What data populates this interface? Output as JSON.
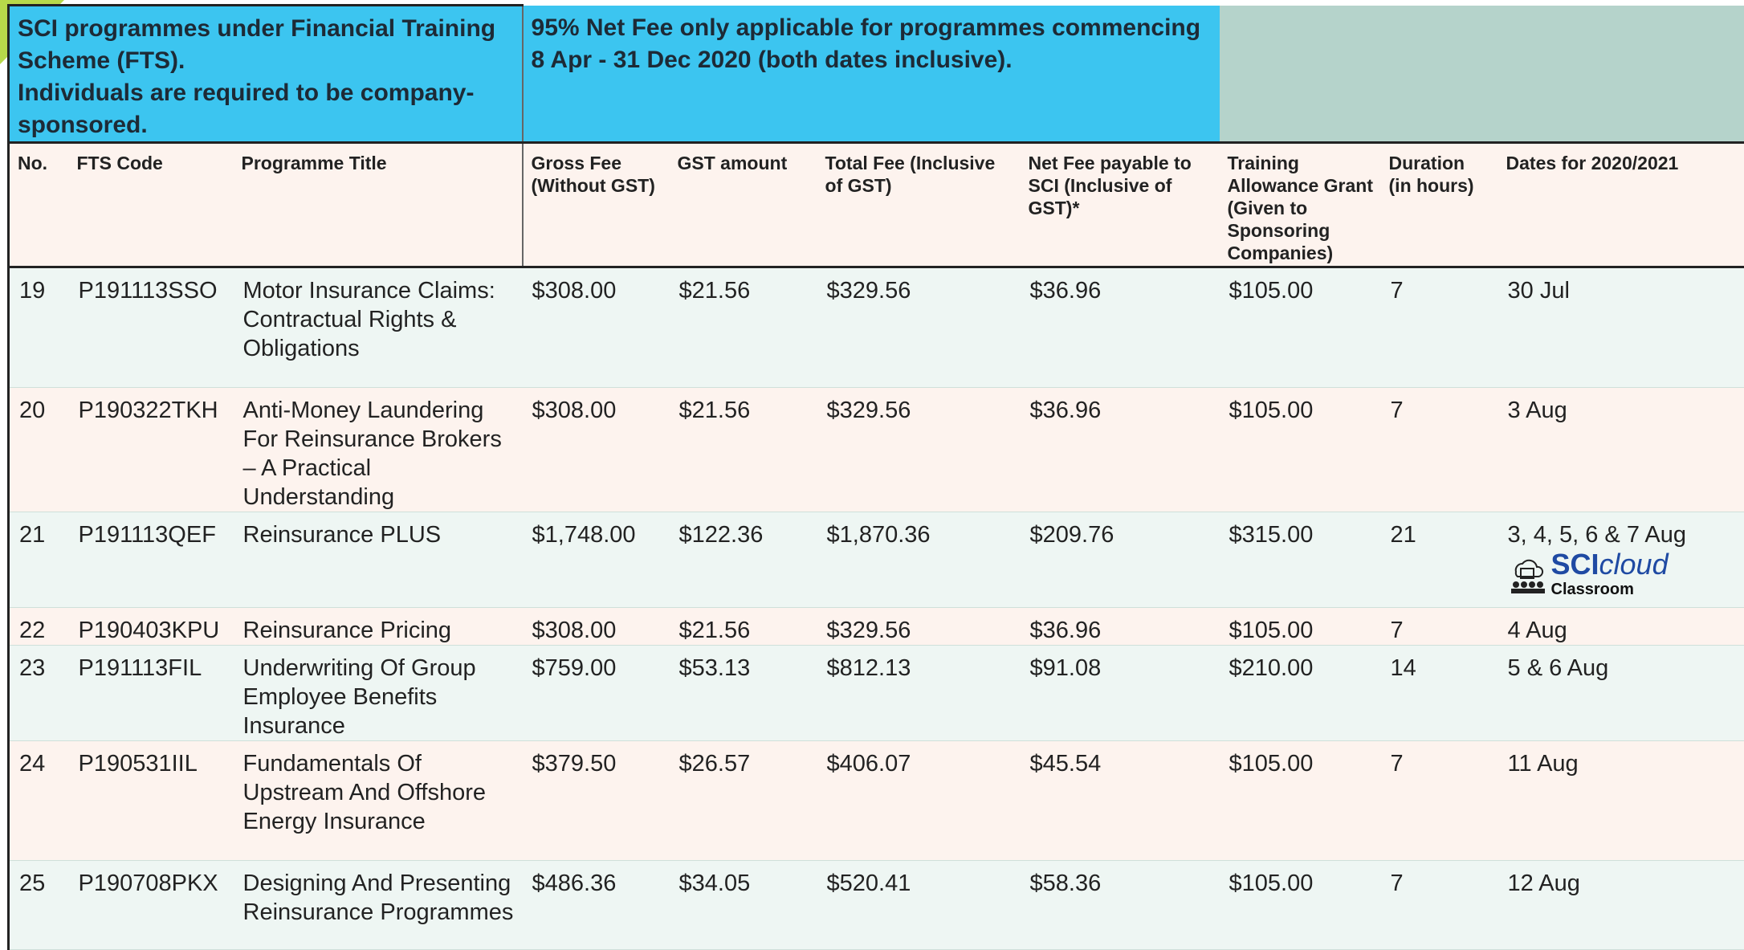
{
  "header": {
    "left": "SCI programmes under Financial Training Scheme (FTS).\nIndividuals are required to be company-sponsored.",
    "middle": "95% Net Fee only applicable for programmes commencing 8 Apr - 31 Dec 2020 (both dates inclusive)."
  },
  "table": {
    "columns": [
      "No.",
      "FTS Code",
      "Programme Title",
      "Gross Fee (Without GST)",
      "GST amount",
      "Total Fee (Inclusive of GST)",
      "Net Fee payable to SCI (Inclusive of GST)*",
      "Training Allowance Grant (Given to Sponsoring Companies)",
      "Duration (in hours)",
      "Dates for 2020/2021"
    ],
    "rows": [
      [
        "19",
        "P191113SSO",
        "Motor Insurance Claims:\nContractual Rights & Obligations",
        "$308.00",
        "$21.56",
        "$329.56",
        "$36.96",
        "$105.00",
        "7",
        "30 Jul"
      ],
      [
        "20",
        "P190322TKH",
        "Anti-Money Laundering For Reinsurance Brokers – A Practical Understanding",
        "$308.00",
        "$21.56",
        "$329.56",
        "$36.96",
        "$105.00",
        "7",
        "3 Aug"
      ],
      [
        "21",
        "P191113QEF",
        "Reinsurance PLUS",
        "$1,748.00",
        "$122.36",
        "$1,870.36",
        "$209.76",
        "$315.00",
        "21",
        "3, 4, 5, 6 & 7 Aug"
      ],
      [
        "22",
        "P190403KPU",
        "Reinsurance Pricing",
        "$308.00",
        "$21.56",
        "$329.56",
        "$36.96",
        "$105.00",
        "7",
        "4 Aug"
      ],
      [
        "23",
        "P191113FIL",
        "Underwriting Of Group Employee Benefits Insurance",
        "$759.00",
        "$53.13",
        "$812.13",
        "$91.08",
        "$210.00",
        "14",
        "5 & 6 Aug"
      ],
      [
        "24",
        "P190531IIL",
        "Fundamentals Of Upstream And Offshore Energy Insurance",
        "$379.50",
        "$26.57",
        "$406.07",
        "$45.54",
        "$105.00",
        "7",
        "11 Aug"
      ],
      [
        "25",
        "P190708PKX",
        "Designing And Presenting Reinsurance Programmes",
        "$486.36",
        "$34.05",
        "$520.41",
        "$58.36",
        "$105.00",
        "7",
        "12 Aug"
      ]
    ]
  },
  "badge": {
    "brand": "SCI",
    "cloud": "cloud",
    "sub": "Classroom"
  }
}
